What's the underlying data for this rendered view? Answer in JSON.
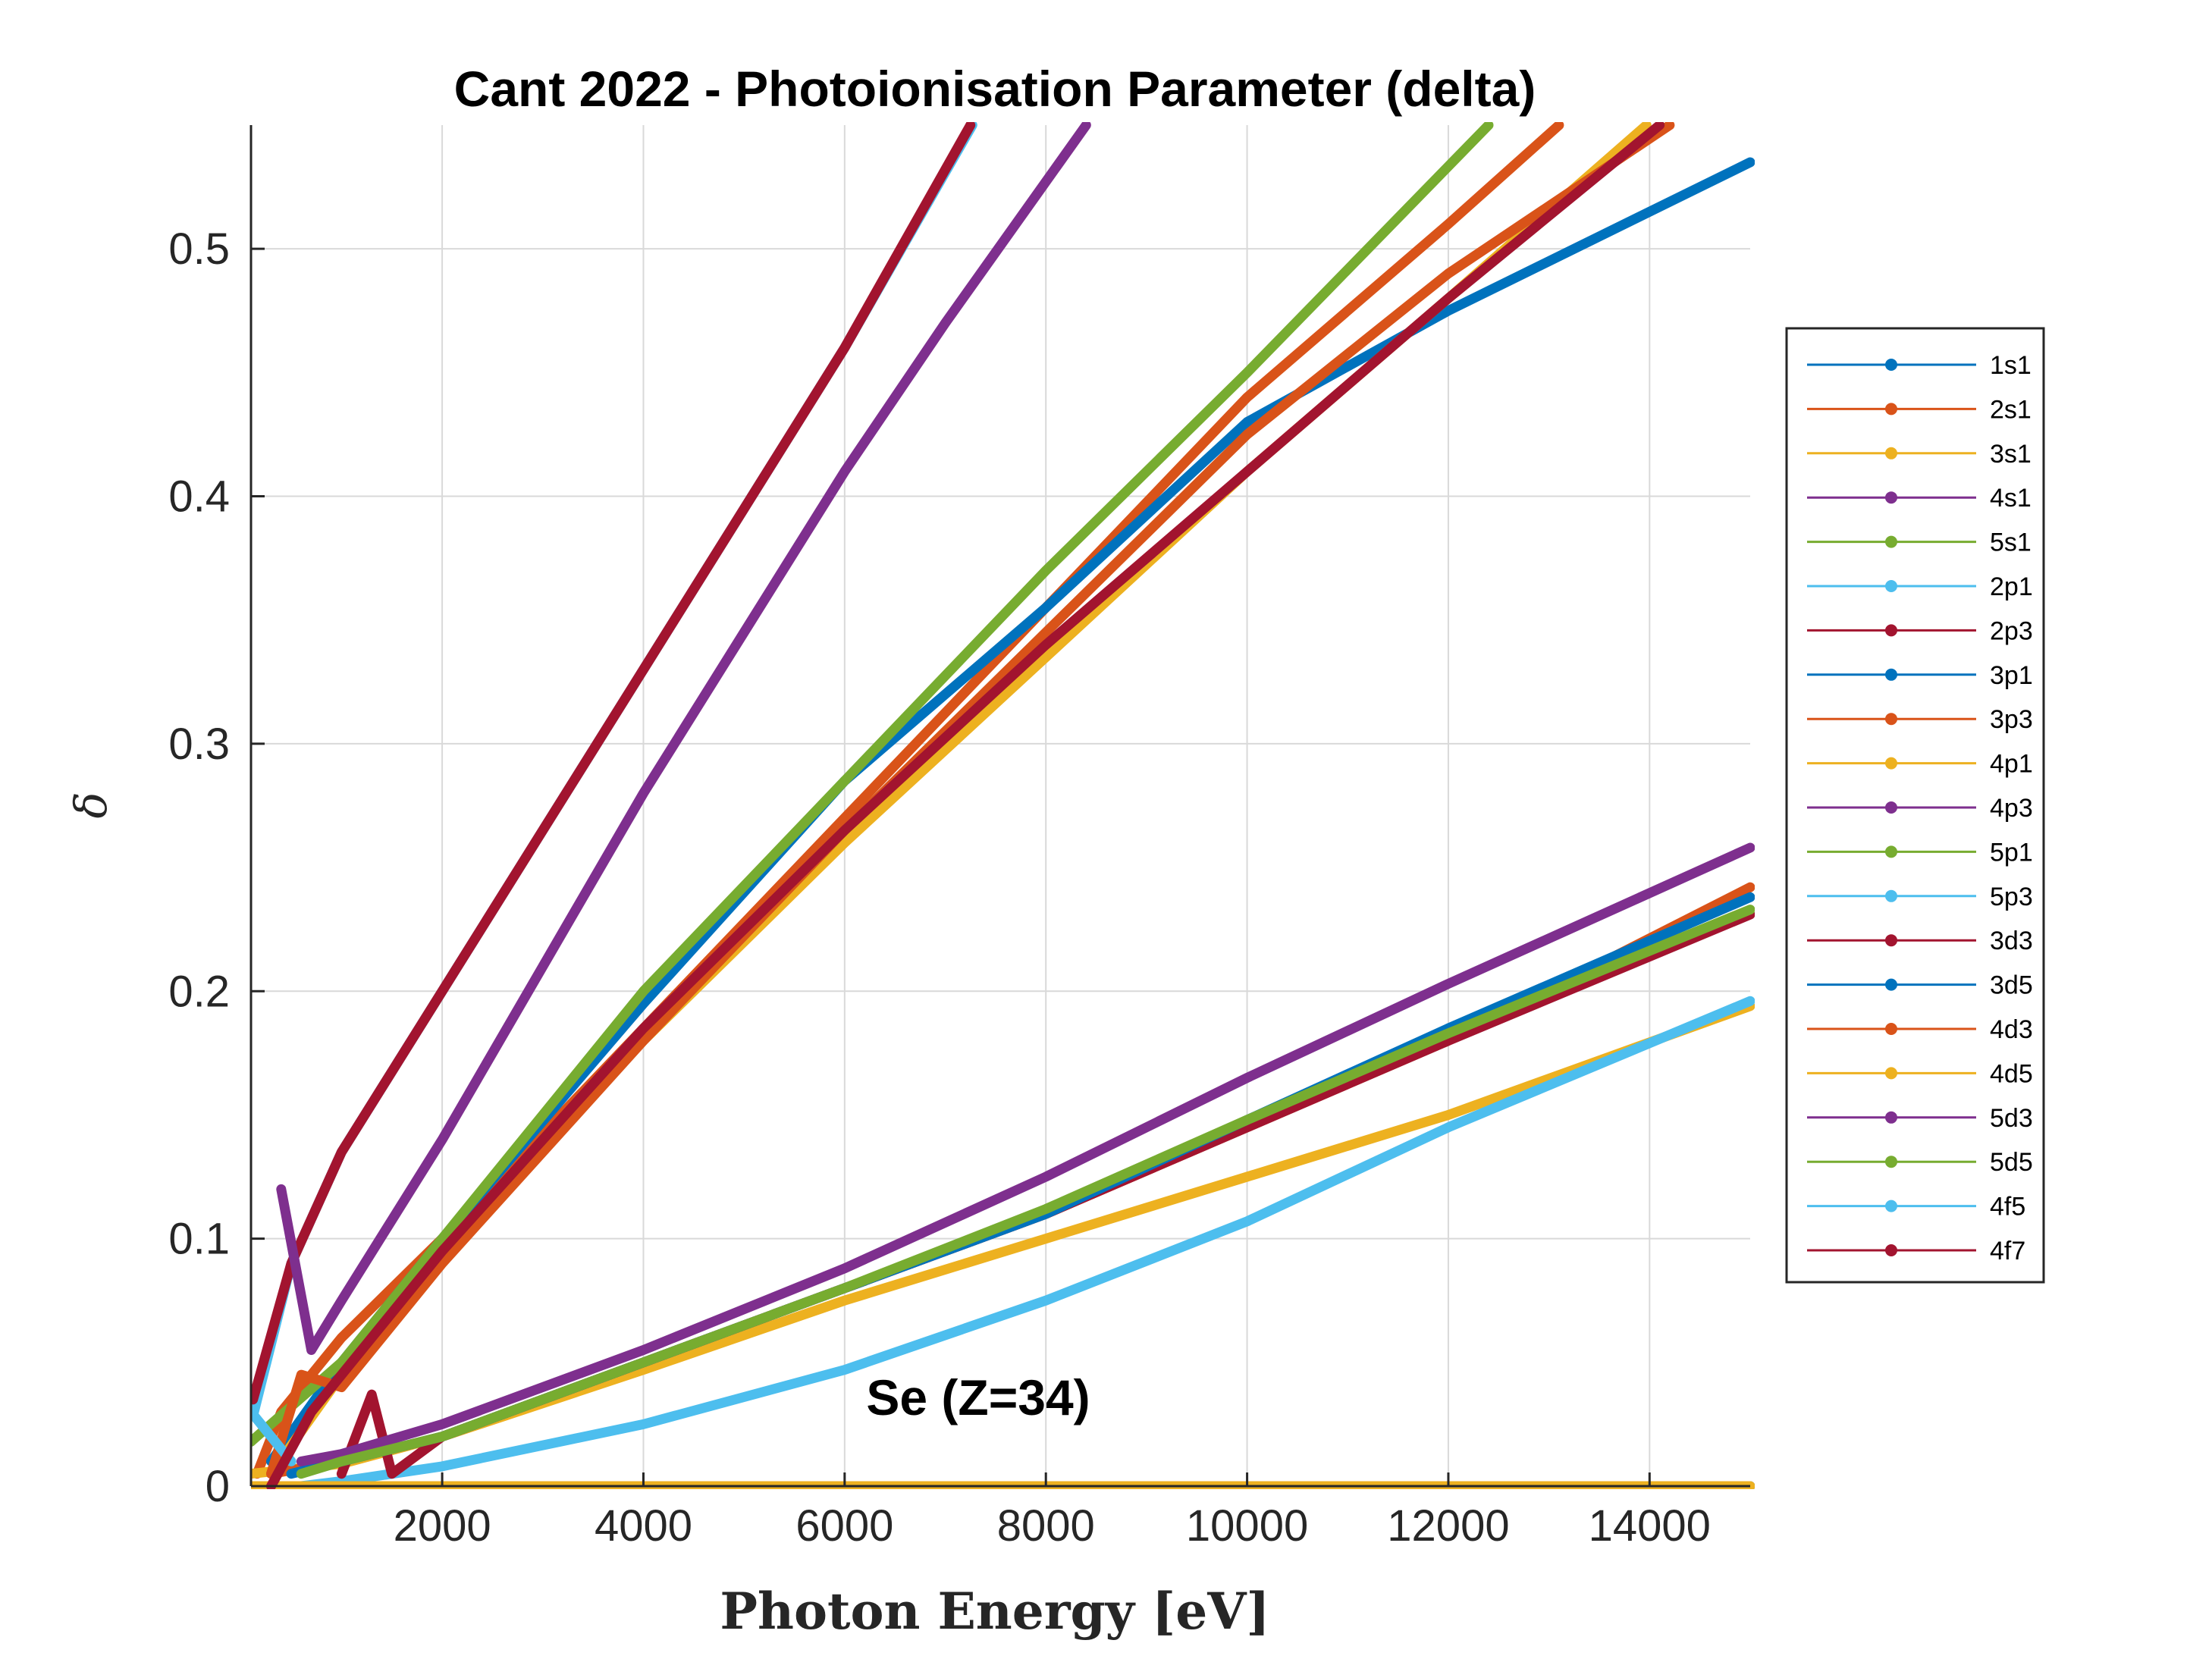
{
  "chart_data": {
    "type": "line",
    "title": "Cant 2022 - Photoionisation Parameter (delta)",
    "xlabel": "Photon Energy [eV]",
    "ylabel": "δ",
    "xlim": [
      100,
      15000
    ],
    "ylim": [
      0,
      0.55
    ],
    "xticks": [
      2000,
      4000,
      6000,
      8000,
      10000,
      12000,
      14000
    ],
    "xtick_labels": [
      "2000",
      "4000",
      "6000",
      "8000",
      "10000",
      "12000",
      "14000"
    ],
    "yticks": [
      0,
      0.1,
      0.2,
      0.3,
      0.4,
      0.5
    ],
    "ytick_labels": [
      "0",
      "0.1",
      "0.2",
      "0.3",
      "0.4",
      "0.5"
    ],
    "grid": true,
    "legend_position": "right",
    "annotation": "Se (Z=34)",
    "series": [
      {
        "name": "1s1",
        "color": "#0072BD",
        "x": [
          100,
          2000,
          4000,
          6000,
          8000,
          10000,
          12000,
          14000,
          15000
        ],
        "values": [
          0,
          0,
          0,
          0,
          0,
          0,
          0,
          0,
          0
        ]
      },
      {
        "name": "2s1",
        "color": "#D95319",
        "x": [
          160,
          400,
          1000,
          2000,
          4000,
          6000,
          8000,
          10000,
          12000,
          13100
        ],
        "values": [
          0.005,
          0.03,
          0.06,
          0.1,
          0.185,
          0.27,
          0.355,
          0.44,
          0.51,
          0.55
        ]
      },
      {
        "name": "3s1",
        "color": "#EDB120",
        "x": [
          100,
          1000,
          2000,
          4000,
          6000,
          8000,
          10000,
          12000,
          15000
        ],
        "values": [
          0.005,
          0.009,
          0.02,
          0.047,
          0.075,
          0.1,
          0.125,
          0.15,
          0.194
        ]
      },
      {
        "name": "4s1",
        "color": "#7E2F8E",
        "x": [
          100,
          2000,
          4000,
          6000,
          8000,
          10000,
          10600,
          10700
        ],
        "values": [
          0,
          0,
          0,
          0,
          0,
          0,
          0,
          0
        ]
      },
      {
        "name": "5s1",
        "color": "#77AC30",
        "x": [
          100,
          2000,
          4000,
          6000,
          8000,
          10000,
          10500
        ],
        "values": [
          0,
          0,
          0,
          0,
          0,
          0,
          0
        ]
      },
      {
        "name": "2p1",
        "color": "#4DBEEE",
        "x": [
          130,
          500,
          1000,
          2000,
          3000,
          4000,
          5000,
          6000,
          7270
        ],
        "values": [
          0.03,
          0.09,
          0.135,
          0.2,
          0.265,
          0.33,
          0.395,
          0.46,
          0.55
        ]
      },
      {
        "name": "2p3",
        "color": "#A2142F",
        "x": [
          120,
          500,
          1000,
          2000,
          3000,
          4000,
          5000,
          6000,
          7250
        ],
        "values": [
          0.035,
          0.09,
          0.135,
          0.2,
          0.265,
          0.33,
          0.395,
          0.46,
          0.55
        ]
      },
      {
        "name": "3p1",
        "color": "#0072BD",
        "x": [
          300,
          1000,
          2000,
          4000,
          6000,
          8000,
          10000,
          12000,
          15000
        ],
        "values": [
          0.01,
          0.05,
          0.1,
          0.195,
          0.285,
          0.355,
          0.43,
          0.475,
          0.535
        ]
      },
      {
        "name": "3p3",
        "color": "#D95319",
        "x": [
          300,
          1000,
          2000,
          4000,
          6000,
          8000,
          10000,
          12000,
          15000
        ],
        "values": [
          0.005,
          0.01,
          0.02,
          0.05,
          0.08,
          0.11,
          0.145,
          0.18,
          0.242
        ]
      },
      {
        "name": "4p1",
        "color": "#EDB120",
        "x": [
          300,
          1000,
          2000,
          4000,
          6000,
          8000,
          10000,
          12000,
          13970
        ],
        "values": [
          0.005,
          0.045,
          0.095,
          0.18,
          0.26,
          0.335,
          0.41,
          0.48,
          0.55
        ]
      },
      {
        "name": "4p3",
        "color": "#7E2F8E",
        "x": [
          400,
          700,
          1000,
          2000,
          3000,
          4000,
          5000,
          6000,
          7000,
          8400
        ],
        "values": [
          0.12,
          0.055,
          0.075,
          0.14,
          0.21,
          0.28,
          0.345,
          0.41,
          0.47,
          0.55
        ]
      },
      {
        "name": "5p1",
        "color": "#77AC30",
        "x": [
          100,
          1000,
          2000,
          4000,
          6000,
          8000,
          10000,
          12400
        ],
        "values": [
          0.018,
          0.05,
          0.1,
          0.2,
          0.285,
          0.37,
          0.45,
          0.55
        ]
      },
      {
        "name": "5p3",
        "color": "#4DBEEE",
        "x": [
          600,
          1000,
          2000,
          4000,
          6000,
          8000,
          10000,
          12000,
          15000
        ],
        "values": [
          0,
          0.002,
          0.008,
          0.025,
          0.047,
          0.075,
          0.107,
          0.145,
          0.196
        ]
      },
      {
        "name": "3d3",
        "color": "#A2142F",
        "x": [
          1000,
          1300,
          1500,
          2000,
          4000,
          6000,
          8000,
          10000,
          12000,
          15000
        ],
        "values": [
          0.005,
          0.037,
          0.005,
          0.02,
          0.05,
          0.08,
          0.11,
          0.145,
          0.18,
          0.231
        ]
      },
      {
        "name": "3d5",
        "color": "#0072BD",
        "x": [
          500,
          1000,
          2000,
          4000,
          6000,
          8000,
          10000,
          12000,
          15000
        ],
        "values": [
          0.005,
          0.01,
          0.02,
          0.05,
          0.08,
          0.11,
          0.148,
          0.185,
          0.238
        ]
      },
      {
        "name": "4d3",
        "color": "#D95319",
        "x": [
          300,
          600,
          1000,
          2000,
          4000,
          6000,
          8000,
          10000,
          12000,
          14200
        ],
        "values": [
          0.005,
          0.045,
          0.04,
          0.09,
          0.18,
          0.265,
          0.345,
          0.425,
          0.49,
          0.55
        ]
      },
      {
        "name": "4d5",
        "color": "#EDB120",
        "x": [
          100,
          2000,
          4000,
          6000,
          8000,
          10000,
          12000,
          14000,
          15000
        ],
        "values": [
          0,
          0,
          0,
          0,
          0,
          0,
          0,
          0,
          0
        ]
      },
      {
        "name": "5d3",
        "color": "#7E2F8E",
        "x": [
          600,
          1000,
          2000,
          4000,
          6000,
          8000,
          10000,
          12000,
          15000
        ],
        "values": [
          0.01,
          0.013,
          0.025,
          0.055,
          0.088,
          0.125,
          0.165,
          0.203,
          0.258
        ]
      },
      {
        "name": "5d5",
        "color": "#77AC30",
        "x": [
          600,
          1000,
          2000,
          4000,
          6000,
          8000,
          10000,
          12000,
          15000
        ],
        "values": [
          0.005,
          0.01,
          0.02,
          0.05,
          0.08,
          0.112,
          0.148,
          0.183,
          0.233
        ]
      },
      {
        "name": "4f5",
        "color": "#4DBEEE",
        "x": [
          100,
          300,
          500
        ],
        "values": [
          0.03,
          0.02,
          0.01
        ]
      },
      {
        "name": "4f7",
        "color": "#A2142F",
        "x": [
          300,
          700,
          1000,
          2000,
          4000,
          6000,
          8000,
          10000,
          12000,
          14100
        ],
        "values": [
          0,
          0.03,
          0.045,
          0.095,
          0.185,
          0.265,
          0.34,
          0.41,
          0.48,
          0.55
        ]
      }
    ]
  }
}
